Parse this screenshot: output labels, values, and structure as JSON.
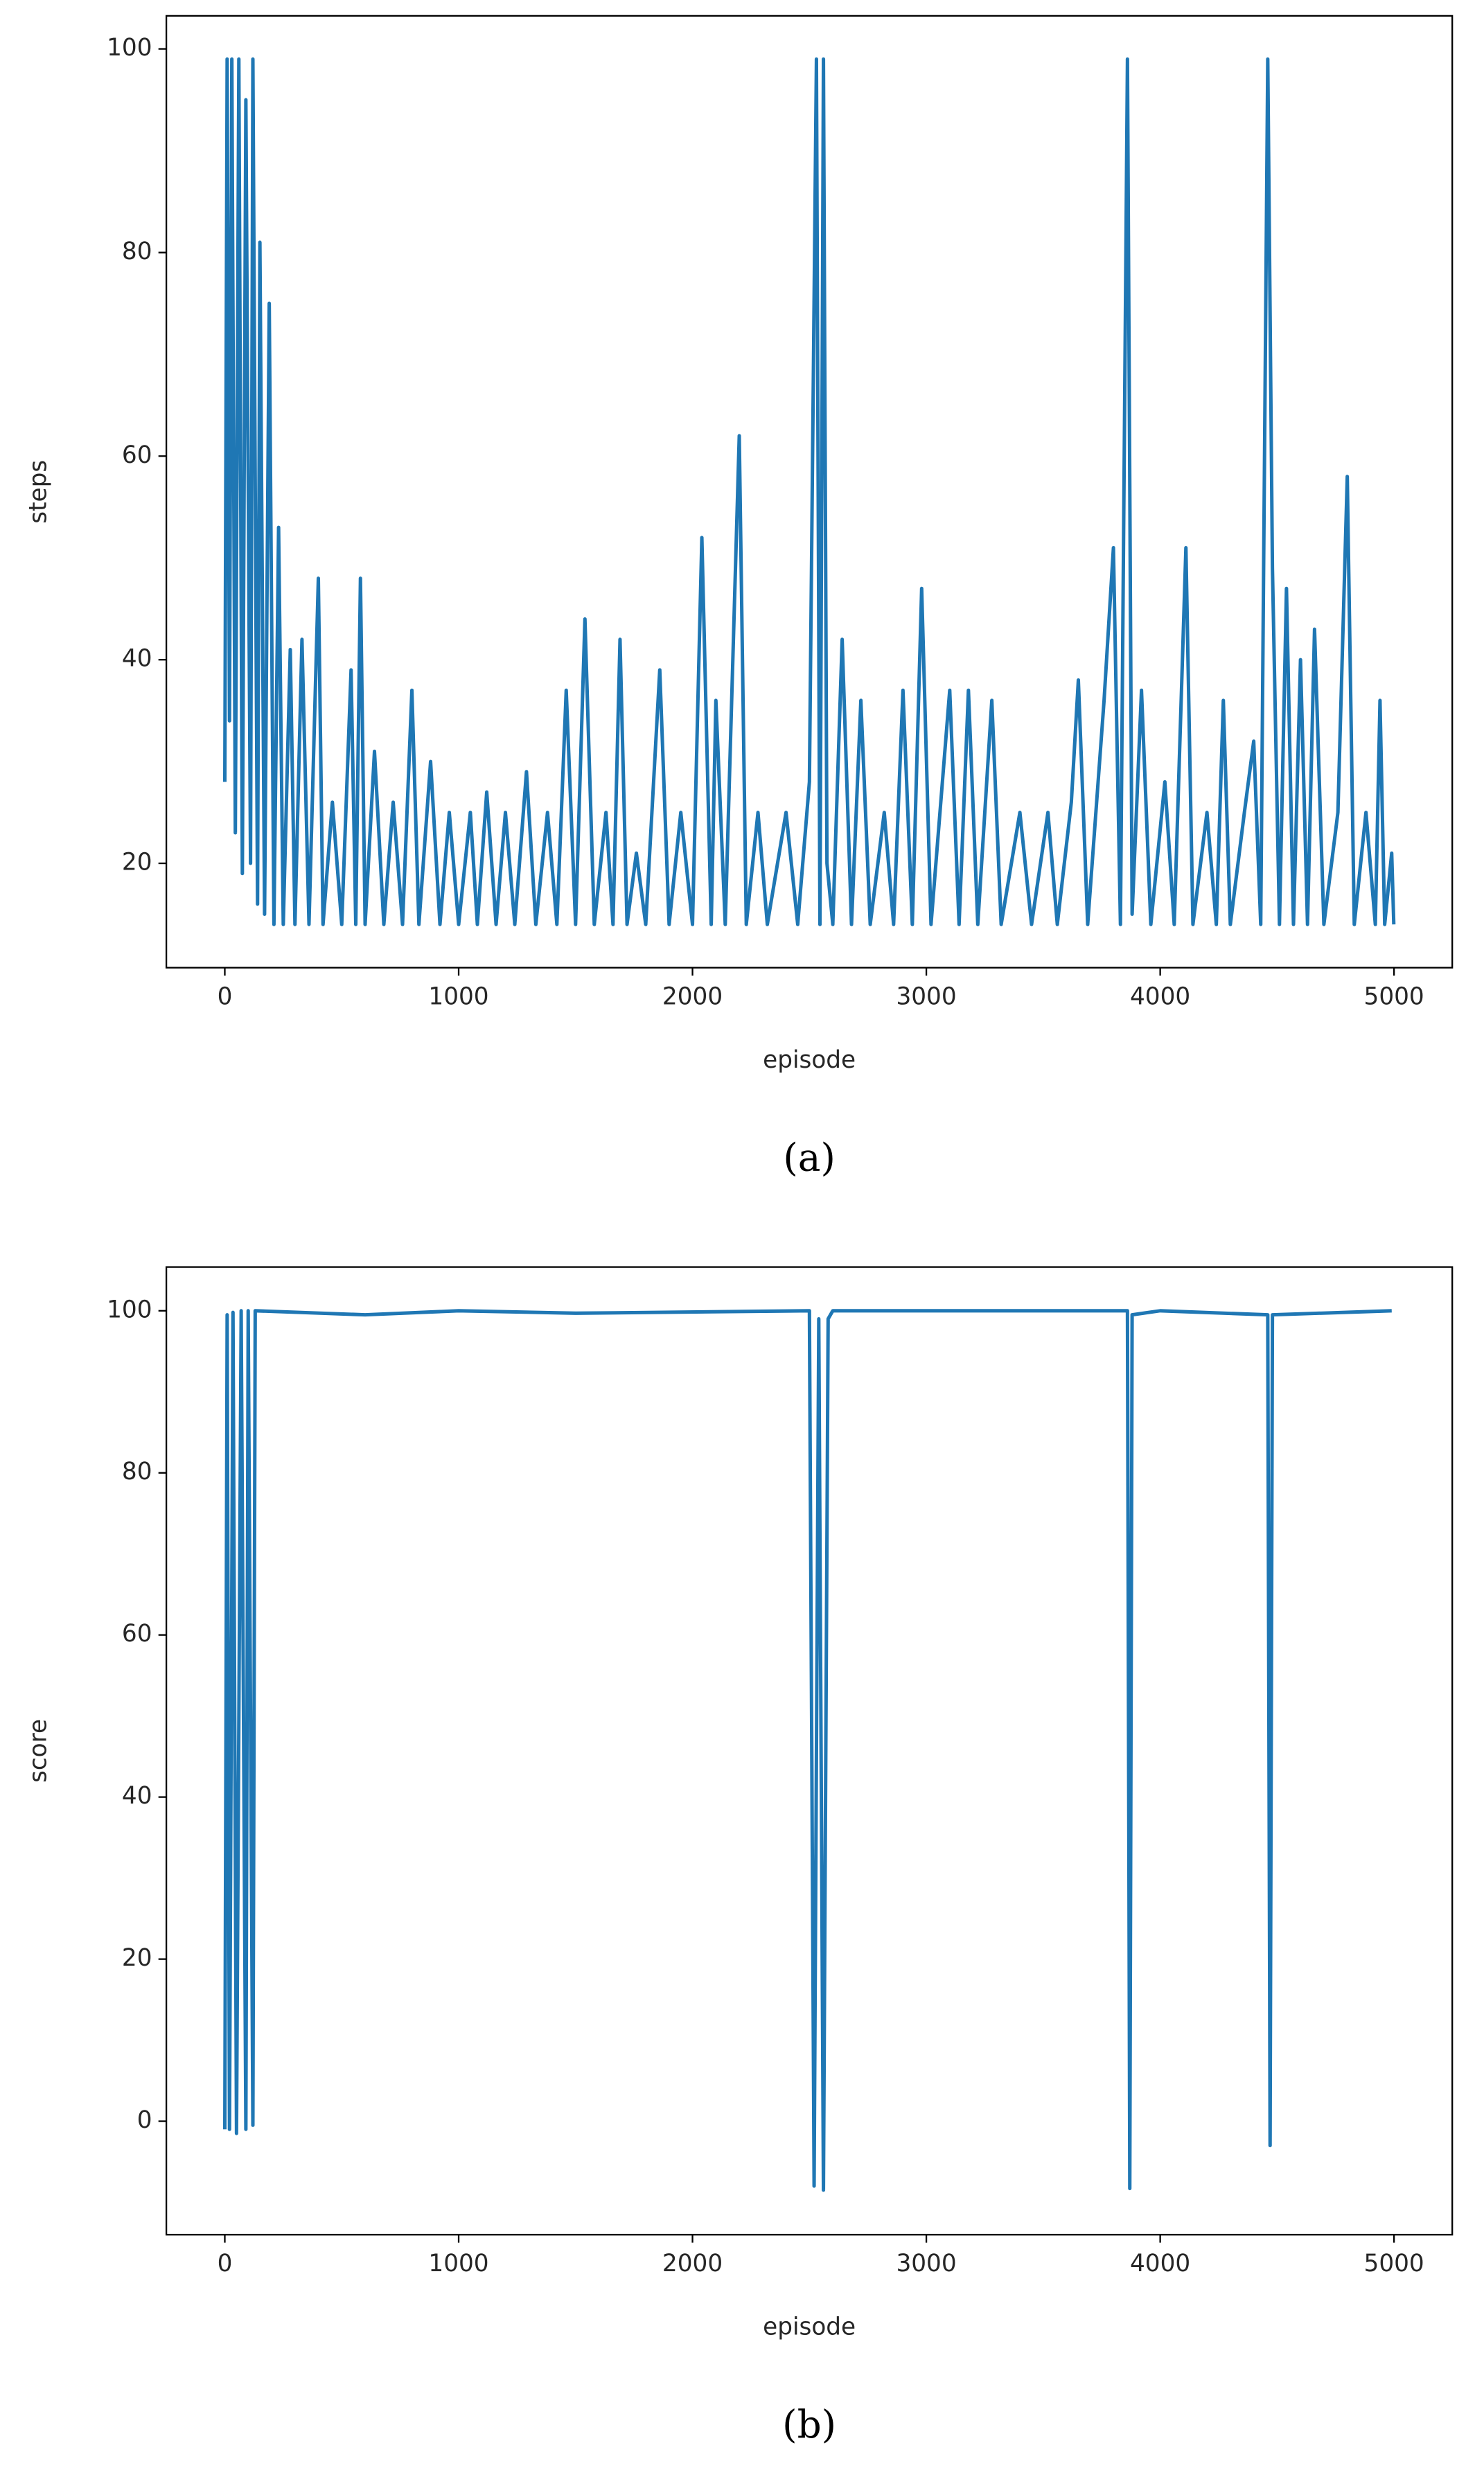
{
  "chart_data": [
    {
      "type": "line",
      "caption": "(a)",
      "xlabel": "episode",
      "ylabel": "steps",
      "color": "#1f77b4",
      "xlim": [
        -250,
        5249
      ],
      "xticks": [
        0,
        1000,
        2000,
        3000,
        4000,
        5000
      ],
      "ylim": [
        9.75,
        103.25
      ],
      "yticks": [
        20,
        40,
        60,
        80,
        100
      ],
      "x": [
        0,
        10,
        20,
        30,
        45,
        60,
        75,
        90,
        110,
        120,
        140,
        150,
        170,
        190,
        210,
        230,
        250,
        280,
        300,
        330,
        360,
        400,
        420,
        460,
        500,
        540,
        560,
        580,
        600,
        640,
        680,
        720,
        760,
        800,
        830,
        880,
        920,
        960,
        1000,
        1050,
        1080,
        1120,
        1160,
        1200,
        1240,
        1290,
        1330,
        1380,
        1420,
        1460,
        1500,
        1540,
        1580,
        1630,
        1660,
        1690,
        1720,
        1760,
        1800,
        1860,
        1900,
        1950,
        2000,
        2040,
        2080,
        2100,
        2140,
        2200,
        2230,
        2280,
        2320,
        2400,
        2450,
        2500,
        2530,
        2545,
        2560,
        2575,
        2600,
        2640,
        2680,
        2720,
        2760,
        2820,
        2860,
        2900,
        2940,
        2980,
        3020,
        3100,
        3140,
        3180,
        3220,
        3280,
        3320,
        3400,
        3450,
        3520,
        3560,
        3620,
        3650,
        3690,
        3760,
        3800,
        3830,
        3860,
        3880,
        3920,
        3960,
        4020,
        4060,
        4110,
        4140,
        4200,
        4240,
        4270,
        4300,
        4360,
        4400,
        4430,
        4460,
        4480,
        4510,
        4540,
        4570,
        4600,
        4630,
        4660,
        4700,
        4760,
        4800,
        4830,
        4880,
        4920,
        4940,
        4960,
        4990,
        4999
      ],
      "values": [
        28,
        99,
        34,
        99,
        23,
        99,
        19,
        95,
        20,
        99,
        16,
        81,
        15,
        75,
        14,
        53,
        14,
        41,
        14,
        42,
        14,
        48,
        14,
        26,
        14,
        39,
        14,
        48,
        14,
        31,
        14,
        26,
        14,
        37,
        14,
        30,
        14,
        25,
        14,
        25,
        14,
        27,
        14,
        25,
        14,
        29,
        14,
        25,
        14,
        37,
        14,
        44,
        14,
        25,
        14,
        42,
        14,
        21,
        14,
        39,
        14,
        25,
        14,
        52,
        14,
        36,
        14,
        62,
        14,
        25,
        14,
        25,
        14,
        28,
        99,
        14,
        99,
        20,
        14,
        42,
        14,
        36,
        14,
        25,
        14,
        37,
        14,
        47,
        14,
        37,
        14,
        37,
        14,
        36,
        14,
        25,
        14,
        25,
        14,
        26,
        38,
        14,
        36,
        51,
        14,
        99,
        15,
        37,
        14,
        28,
        14,
        51,
        14,
        25,
        14,
        36,
        14,
        25,
        32,
        14,
        99,
        49,
        14,
        47,
        14,
        40,
        14,
        43,
        14,
        25,
        58,
        14,
        25,
        14,
        36,
        14,
        21,
        14
      ]
    },
    {
      "type": "line",
      "caption": "(b)",
      "xlabel": "episode",
      "ylabel": "score",
      "color": "#1f77b4",
      "xlim": [
        -250,
        5249
      ],
      "xticks": [
        0,
        1000,
        2000,
        3000,
        4000,
        5000
      ],
      "ylim": [
        -14,
        105.4
      ],
      "yticks": [
        0,
        20,
        40,
        60,
        80,
        100
      ],
      "x": [
        0,
        10,
        20,
        35,
        50,
        70,
        90,
        100,
        120,
        130,
        600,
        1000,
        1500,
        2500,
        2520,
        2540,
        2560,
        2580,
        2600,
        3000,
        3860,
        3870,
        3880,
        4000,
        4460,
        4470,
        4480,
        4990
      ],
      "values": [
        -1,
        99.5,
        -1,
        99.8,
        -1.5,
        100,
        -1,
        100,
        -0.5,
        100,
        99.5,
        100,
        99.7,
        100,
        -8,
        99,
        -8.5,
        99,
        100,
        100,
        100,
        -8.3,
        99.5,
        100,
        99.5,
        -3,
        99.5,
        100
      ]
    }
  ]
}
